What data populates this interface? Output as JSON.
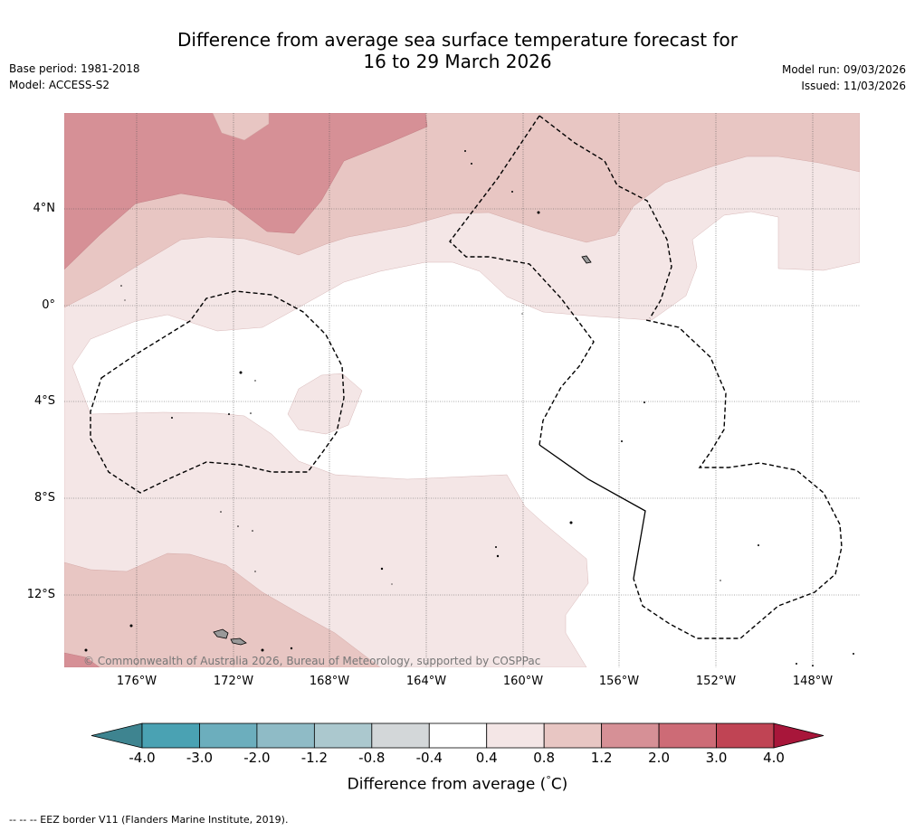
{
  "title_line1": "Difference from average sea surface temperature forecast for",
  "title_line2": "16 to 29 March 2026",
  "base_period": "Base period: 1981-2018",
  "model": "Model: ACCESS-S2",
  "model_run": "Model run: 09/03/2026",
  "issued": "Issued: 11/03/2026",
  "lat_labels": [
    "4°N",
    "0°",
    "4°S",
    "8°S",
    "12°S"
  ],
  "lon_labels": [
    "176°W",
    "172°W",
    "168°W",
    "164°W",
    "160°W",
    "156°W",
    "152°W",
    "148°W"
  ],
  "copyright": "© Commonwealth of Australia 2026, Bureau of Meteorology, supported by COSPPac",
  "colorbar": {
    "ticks": [
      "-4.0",
      "-3.0",
      "-2.0",
      "-1.2",
      "-0.8",
      "-0.4",
      "0.4",
      "0.8",
      "1.2",
      "2.0",
      "3.0",
      "4.0"
    ],
    "colors": [
      "#3e8490",
      "#4aa2b3",
      "#6caebd",
      "#8fbbc6",
      "#abc8ce",
      "#d3d7d9",
      "#ffffff",
      "#f4e6e6",
      "#e8c6c3",
      "#d69096",
      "#cd6b76",
      "#c04454",
      "#a8163a"
    ],
    "label": "Difference from average (°C)",
    "label_degree": "°",
    "label_prefix": "Difference from average (",
    "label_suffix": "C)"
  },
  "footer": "-- -- -- EEZ border V11 (Flanders Marine Institute, 2019).",
  "colors": {
    "anom_0_4_0_8": "#f4e6e6",
    "anom_0_8_1_2": "#e8c6c3",
    "anom_1_2_2_0": "#d69096",
    "anom_2_0_3_0": "#cd6b76",
    "land": "#999999"
  }
}
